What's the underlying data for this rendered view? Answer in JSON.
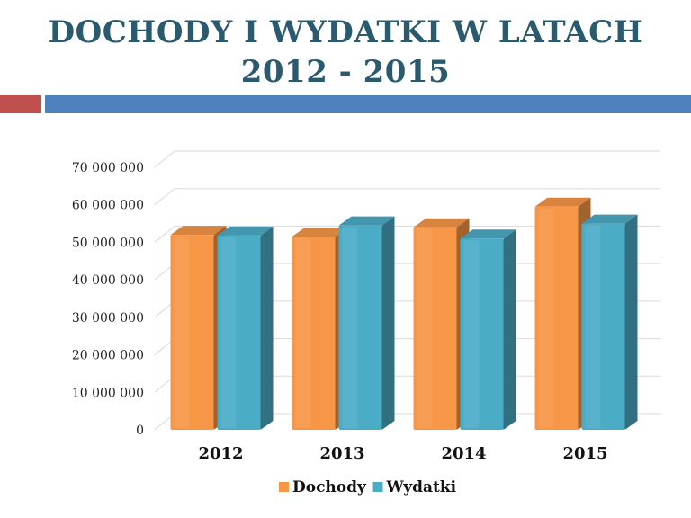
{
  "slide": {
    "title_line1": "DOCHODY I WYDATKI W LATACH",
    "title_line2": "2012 - 2015",
    "accent_red": "#c0504d",
    "accent_blue": "#4f81bd"
  },
  "chart_data": {
    "type": "bar",
    "title": "",
    "xlabel": "",
    "ylabel": "",
    "categories": [
      "2012",
      "2013",
      "2014",
      "2015"
    ],
    "ylim": [
      0,
      70000000
    ],
    "yticks": [
      0,
      10000000,
      20000000,
      30000000,
      40000000,
      50000000,
      60000000,
      70000000
    ],
    "ytick_labels": [
      "0",
      "10 000 000",
      "20 000 000",
      "30 000 000",
      "40 000 000",
      "50 000 000",
      "60 000 000",
      "70 000 000"
    ],
    "grid": true,
    "legend_position": "bottom",
    "series": [
      {
        "name": "Dochody",
        "color": "#f79646",
        "values": [
          52000000,
          51500000,
          54000000,
          59500000
        ]
      },
      {
        "name": "Wydatki",
        "color": "#4bacc6",
        "values": [
          51800000,
          54500000,
          51000000,
          55000000
        ]
      }
    ]
  }
}
